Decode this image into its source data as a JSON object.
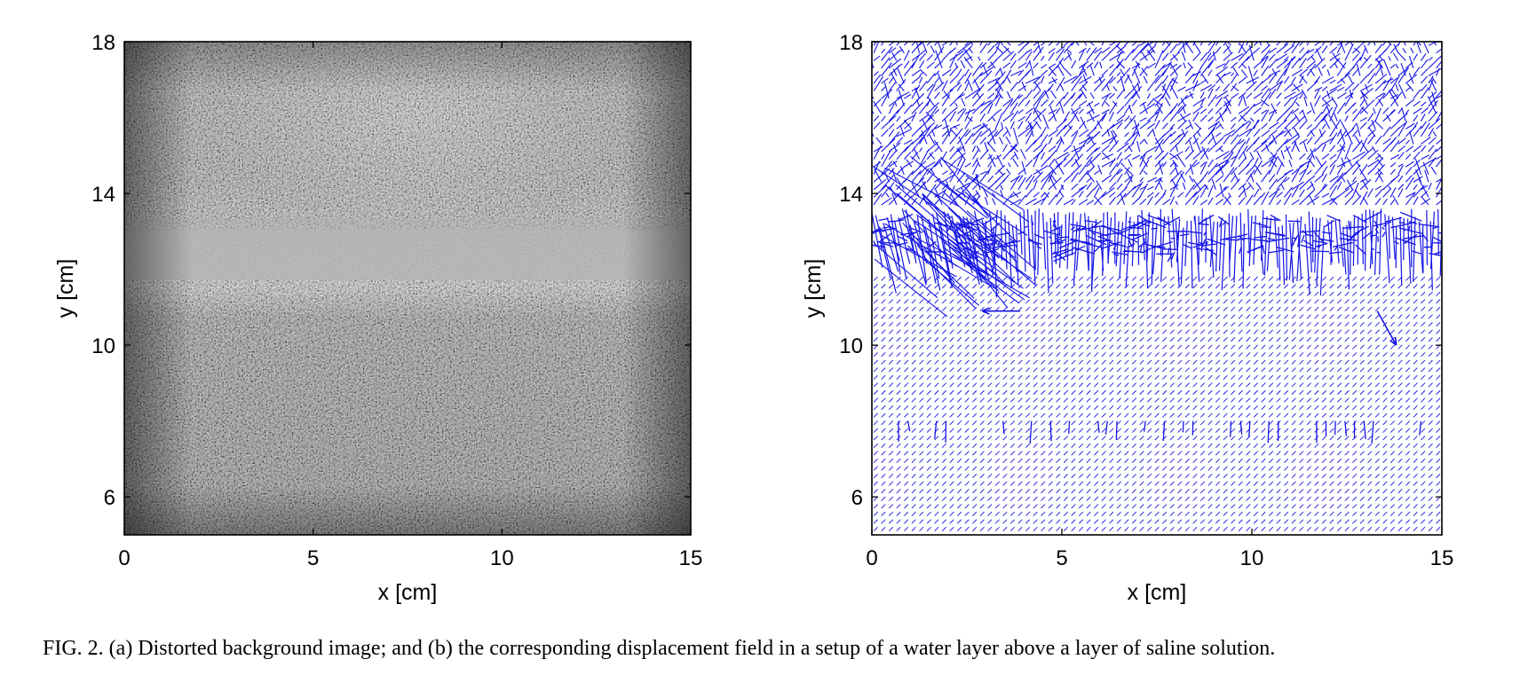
{
  "figure": {
    "caption": "FIG. 2.  (a) Distorted background image; and (b) the corresponding displacement field in a setup of a water layer above a layer of saline solution."
  },
  "colors": {
    "vector": "#1414e6",
    "axis": "#000000",
    "image_light": "#cfcfcf",
    "image_dark": "#3c3c3c"
  },
  "chart_data": [
    {
      "type": "heatmap",
      "panel": "a",
      "content": "grayscale background speckle image",
      "xlabel": "x [cm]",
      "ylabel": "y [cm]",
      "xlim": [
        0,
        15
      ],
      "ylim": [
        5,
        18
      ],
      "xticks": [
        0,
        5,
        10,
        15
      ],
      "yticks": [
        6,
        10,
        14,
        18
      ],
      "xtick_labels": [
        "0",
        "5",
        "10",
        "15"
      ],
      "ytick_labels": [
        "6",
        "10",
        "14",
        "18"
      ],
      "features": [
        {
          "kind": "smeared bright band",
          "y_range": [
            12.0,
            13.0
          ]
        },
        {
          "kind": "brighter upper region",
          "y_range": [
            13.0,
            18.0
          ]
        }
      ],
      "grid": false
    },
    {
      "type": "quiver",
      "panel": "b",
      "content": "displacement vector field",
      "xlabel": "x [cm]",
      "ylabel": "y [cm]",
      "xlim": [
        0,
        15
      ],
      "ylim": [
        5,
        18
      ],
      "xticks": [
        0,
        5,
        10,
        15
      ],
      "yticks": [
        6,
        10,
        14,
        18
      ],
      "xtick_labels": [
        "0",
        "5",
        "10",
        "15"
      ],
      "ytick_labels": [
        "6",
        "10",
        "14",
        "18"
      ],
      "interface_band_y": [
        11.8,
        13.6
      ],
      "secondary_band_y": 7.9,
      "notable_vectors": [
        {
          "x": 3.9,
          "y": 10.9,
          "dx": -1.0,
          "dy": 0.0
        },
        {
          "x": 13.3,
          "y": 10.9,
          "dx": 0.5,
          "dy": -0.9
        }
      ],
      "grid": false
    }
  ]
}
